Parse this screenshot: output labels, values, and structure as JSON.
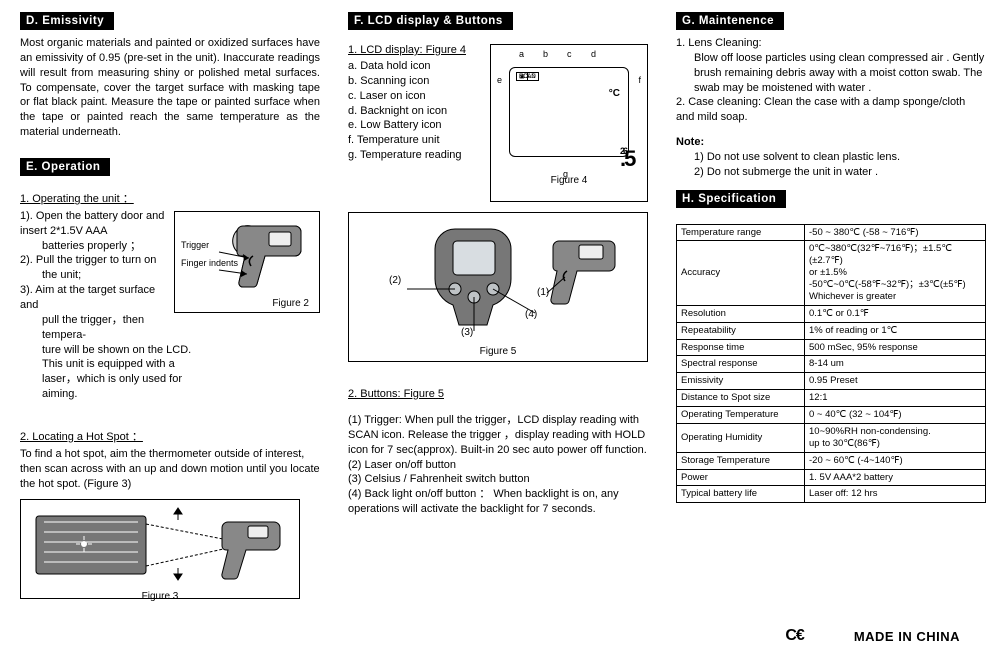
{
  "sectionD": {
    "header": "D. Emissivity",
    "body": "Most organic materials and painted or oxidized surfaces have an emissivity of 0.95 (pre-set in the unit). Inaccurate readings will result from measuring shiny or polished metal surfaces. To compensate, cover the target surface with masking tape or flat black paint. Measure the tape or painted surface when the tape or painted reach the same temperature as the material underneath."
  },
  "sectionE": {
    "header": "E. Operation",
    "sub1": "1.  Operating the unit ：",
    "l1": "1). Open the battery door and insert 2*1.5V    AAA",
    "l1b": "batteries properly ；",
    "l2": "2). Pull the trigger to turn on",
    "l2b": "the unit;",
    "l3": "3). Aim at the target surface and",
    "l3b": "pull the trigger，then tempera-",
    "l3c": "ture will be shown on the LCD.",
    "l3d": "This unit is equipped with a",
    "l3e": "laser，which is only used for",
    "l3f": "aiming.",
    "fig2_trigger": "Trigger",
    "fig2_finger": "Finger indents",
    "fig2_label": "Figure 2",
    "sub2": "2. Locating a Hot Spot ：",
    "hot_body": "To find a hot spot, aim the thermometer outside of interest, then scan across with an up and down motion until you locate the hot spot. (Figure 3)",
    "fig3_label": "Figure 3"
  },
  "sectionF": {
    "header": "F. LCD display & Buttons",
    "sub1": "1. LCD display: Figure 4",
    "a": "a. Data hold icon",
    "b": "b. Scanning icon",
    "c": "c. Laser on icon",
    "d": "d. Backnight on icon",
    "e": "e. Low Battery icon",
    "f": "f. Temperature unit",
    "g": "g. Temperature reading",
    "fig4_label": "Figure 4",
    "lcd_reading_int": "26",
    "lcd_reading_dec": ".5",
    "lcd_unit": "°C",
    "lcd_hold": "HOLD",
    "lcd_scan": "SCAN",
    "fa": "a",
    "fb": "b",
    "fc": "c",
    "fd": "d",
    "fe": "e",
    "ff": "f",
    "fg": "g",
    "fig5_label": "Figure 5",
    "sub2": "2. Buttons: Figure 5",
    "b1": "(1) Trigger: When pull the trigger，LCD display reading with SCAN icon. Release the trigger    ，display reading with HOLD icon for 7 sec(approx). Built-in 20 sec auto power off function.",
    "b2": "(2) Laser on/off button",
    "b3": "(3) Celsius / Fahrenheit switch button",
    "b4": "(4) Back light on/off button ： When backlight is on, any operations will activate the  backlight for 7 seconds.",
    "p1": "(1)",
    "p2": "(2)",
    "p3": "(3)",
    "p4": "(4)"
  },
  "sectionG": {
    "header": "G. Maintenence",
    "l1_title": "1. Lens Cleaning:",
    "l1_body": "Blow off loose particles using clean compressed air . Gently brush remaining debris away with a moist cotton swab. The swab may be moistened with water .",
    "l2": "2. Case cleaning: Clean the case with a damp sponge/cloth and mild soap.",
    "note_label": "Note:",
    "note1": "1) Do not use solvent to clean plastic lens.",
    "note2": "2) Do not submerge the unit in water    ."
  },
  "sectionH": {
    "header": "H. Specification",
    "rows": [
      {
        "k": "Temperature range",
        "v": "-50 ~ 380℃ (-58 ~ 716℉)"
      },
      {
        "k": "Accuracy",
        "v": "0℃~380℃(32℉~716℉)；±1.5℃(±2.7℉)\nor ±1.5%\n-50℃~0℃(-58℉~32℉)；±3℃(±5℉)\nWhichever is greater"
      },
      {
        "k": "Resolution",
        "v": "0.1℃ or 0.1℉"
      },
      {
        "k": "Repeatability",
        "v": "1% of reading or 1℃"
      },
      {
        "k": "Response time",
        "v": "500 mSec, 95% response"
      },
      {
        "k": "Spectral response",
        "v": "8-14 um"
      },
      {
        "k": "Emissivity",
        "v": "0.95 Preset"
      },
      {
        "k": "Distance to Spot size",
        "v": "12:1"
      },
      {
        "k": "Operating Temperature",
        "v": "0 ~ 40℃ (32 ~ 104℉)"
      },
      {
        "k": "Operating Humidity",
        "v": "10~90%RH non-condensing.\nup to 30℃(86℉)"
      },
      {
        "k": "Storage Temperature",
        "v": "-20 ~ 60℃ (-4~140℉)"
      },
      {
        "k": "Power",
        "v": "1. 5V AAA*2  battery"
      },
      {
        "k": "Typical battery life",
        "v": "Laser off: 12 hrs"
      }
    ]
  },
  "footer": {
    "ce": "C€",
    "made": "MADE IN CHINA"
  }
}
